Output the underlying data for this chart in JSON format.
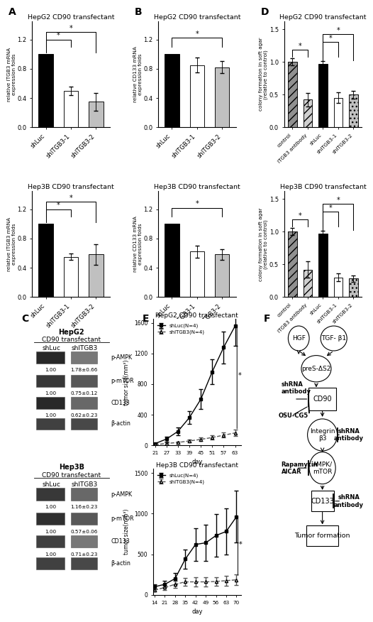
{
  "A_title1": "HepG2 CD90 transfectant",
  "A_title2": "Hep3B CD90 transfectant",
  "A_ylabel": "relative ITGB3 mRNA\nexpression folds",
  "B_ylabel": "relative CD133 mRNA\nexpression folds",
  "D_ylabel": "colony formation in soft agar\n(relative to control)",
  "E_ylabel": "tumor size(mm³)",
  "E_xlabel": "day",
  "cats3": [
    "shLuc",
    "shITGB3-1",
    "shITGB3-2"
  ],
  "cats5": [
    "control",
    "ITGB3 antibody",
    "shLuc",
    "shITGB3-1",
    "shITGB3-2"
  ],
  "A1_vals": [
    1.0,
    0.5,
    0.35
  ],
  "A1_errs": [
    0.0,
    0.06,
    0.12
  ],
  "A2_vals": [
    1.0,
    0.55,
    0.58
  ],
  "A2_errs": [
    0.0,
    0.04,
    0.14
  ],
  "B1_vals": [
    1.0,
    0.85,
    0.82
  ],
  "B1_errs": [
    0.0,
    0.1,
    0.08
  ],
  "B2_vals": [
    1.0,
    0.62,
    0.58
  ],
  "B2_errs": [
    0.0,
    0.08,
    0.07
  ],
  "D1_vals": [
    1.0,
    0.42,
    0.97,
    0.45,
    0.5
  ],
  "D1_errs": [
    0.05,
    0.1,
    0.04,
    0.08,
    0.06
  ],
  "D2_vals": [
    1.0,
    0.42,
    0.97,
    0.3,
    0.28
  ],
  "D2_errs": [
    0.05,
    0.12,
    0.04,
    0.06,
    0.05
  ],
  "bar3_colors": [
    "black",
    "white",
    "#c0c0c0"
  ],
  "bar5_colors": [
    "#909090",
    "#d0d0d0",
    "black",
    "white",
    "#c0c0c0"
  ],
  "bar5_hatches": [
    "///",
    "///",
    "",
    "",
    "..."
  ],
  "E1_days": [
    21,
    27,
    33,
    39,
    45,
    51,
    57,
    63
  ],
  "E1_shLuc": [
    20,
    80,
    180,
    360,
    600,
    960,
    1280,
    1560
  ],
  "E1_shLuc_err": [
    10,
    30,
    55,
    85,
    130,
    160,
    210,
    260
  ],
  "E1_shITGB3": [
    5,
    22,
    35,
    55,
    75,
    100,
    130,
    160
  ],
  "E1_shITGB3_err": [
    3,
    10,
    13,
    16,
    22,
    28,
    33,
    40
  ],
  "E2_days": [
    14,
    21,
    28,
    35,
    42,
    49,
    56,
    63,
    70
  ],
  "E2_shLuc": [
    100,
    130,
    200,
    440,
    620,
    640,
    730,
    780,
    960
  ],
  "E2_shLuc_err": [
    30,
    40,
    70,
    120,
    200,
    220,
    260,
    280,
    320
  ],
  "E2_shITGB3": [
    60,
    90,
    130,
    160,
    160,
    160,
    165,
    175,
    185
  ],
  "E2_shITGB3_err": [
    20,
    30,
    45,
    50,
    55,
    55,
    55,
    60,
    65
  ],
  "C_labels": [
    "p-AMPK",
    "p-mTOR",
    "CD133",
    "β-actin"
  ],
  "C_hepg2_L": [
    "1.00",
    "1.00",
    "1.00",
    ""
  ],
  "C_hepg2_R": [
    "1.78±0.66",
    "0.75±0.12",
    "0.62±0.23",
    ""
  ],
  "C_hep3b_L": [
    "1.00",
    "1.00",
    "1.00",
    ""
  ],
  "C_hep3b_R": [
    "1.16±0.23",
    "0.57±0.06",
    "0.71±0.23",
    ""
  ]
}
